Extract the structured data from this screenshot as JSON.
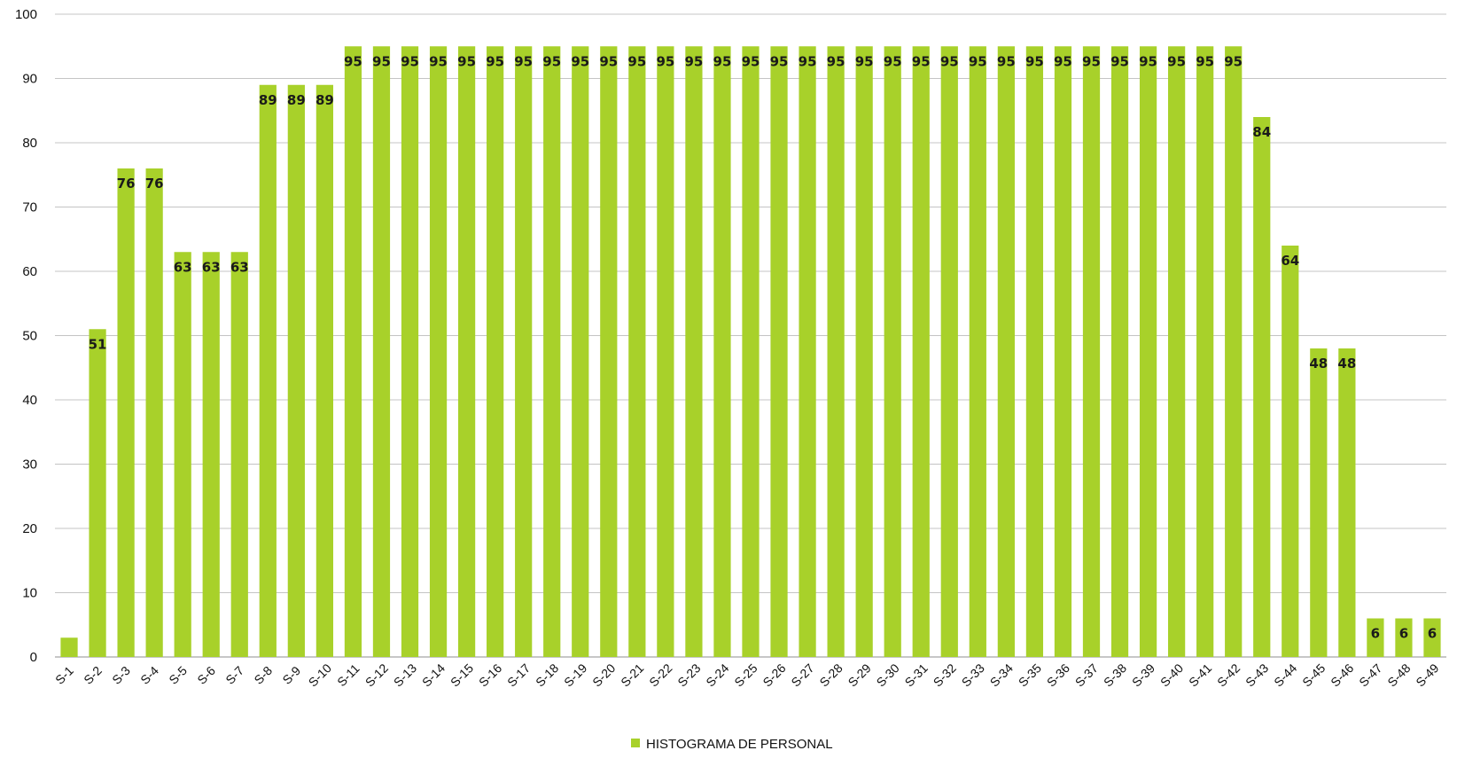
{
  "chart_data": {
    "type": "bar",
    "title": "",
    "xlabel": "",
    "ylabel": "",
    "ylim": [
      0,
      100
    ],
    "yticks": [
      0,
      10,
      20,
      30,
      40,
      50,
      60,
      70,
      80,
      90,
      100
    ],
    "grid": true,
    "legend_position": "bottom",
    "categories": [
      "S-1",
      "S-2",
      "S-3",
      "S-4",
      "S-5",
      "S-6",
      "S-7",
      "S-8",
      "S-9",
      "S-10",
      "S-11",
      "S-12",
      "S-13",
      "S-14",
      "S-15",
      "S-16",
      "S-17",
      "S-18",
      "S-19",
      "S-20",
      "S-21",
      "S-22",
      "S-23",
      "S-24",
      "S-25",
      "S-26",
      "S-27",
      "S-28",
      "S-29",
      "S-30",
      "S-31",
      "S-32",
      "S-33",
      "S-34",
      "S-35",
      "S-36",
      "S-37",
      "S-38",
      "S-39",
      "S-40",
      "S-41",
      "S-42",
      "S-43",
      "S-44",
      "S-45",
      "S-46",
      "S-47",
      "S-48",
      "S-49"
    ],
    "series": [
      {
        "name": "HISTOGRAMA DE PERSONAL",
        "color": "#a8d12a",
        "values": [
          3,
          51,
          76,
          76,
          63,
          63,
          63,
          89,
          89,
          89,
          95,
          95,
          95,
          95,
          95,
          95,
          95,
          95,
          95,
          95,
          95,
          95,
          95,
          95,
          95,
          95,
          95,
          95,
          95,
          95,
          95,
          95,
          95,
          95,
          95,
          95,
          95,
          95,
          95,
          95,
          95,
          95,
          84,
          64,
          48,
          48,
          6,
          6,
          6
        ]
      }
    ],
    "data_labels": [
      "",
      "51",
      "76",
      "76",
      "63",
      "63",
      "63",
      "89",
      "89",
      "89",
      "95",
      "95",
      "95",
      "95",
      "95",
      "95",
      "95",
      "95",
      "95",
      "95",
      "95",
      "95",
      "95",
      "95",
      "95",
      "95",
      "95",
      "95",
      "95",
      "95",
      "95",
      "95",
      "95",
      "95",
      "95",
      "95",
      "95",
      "95",
      "95",
      "95",
      "95",
      "95",
      "84",
      "64",
      "48",
      "48",
      "6",
      "6",
      "6"
    ]
  }
}
